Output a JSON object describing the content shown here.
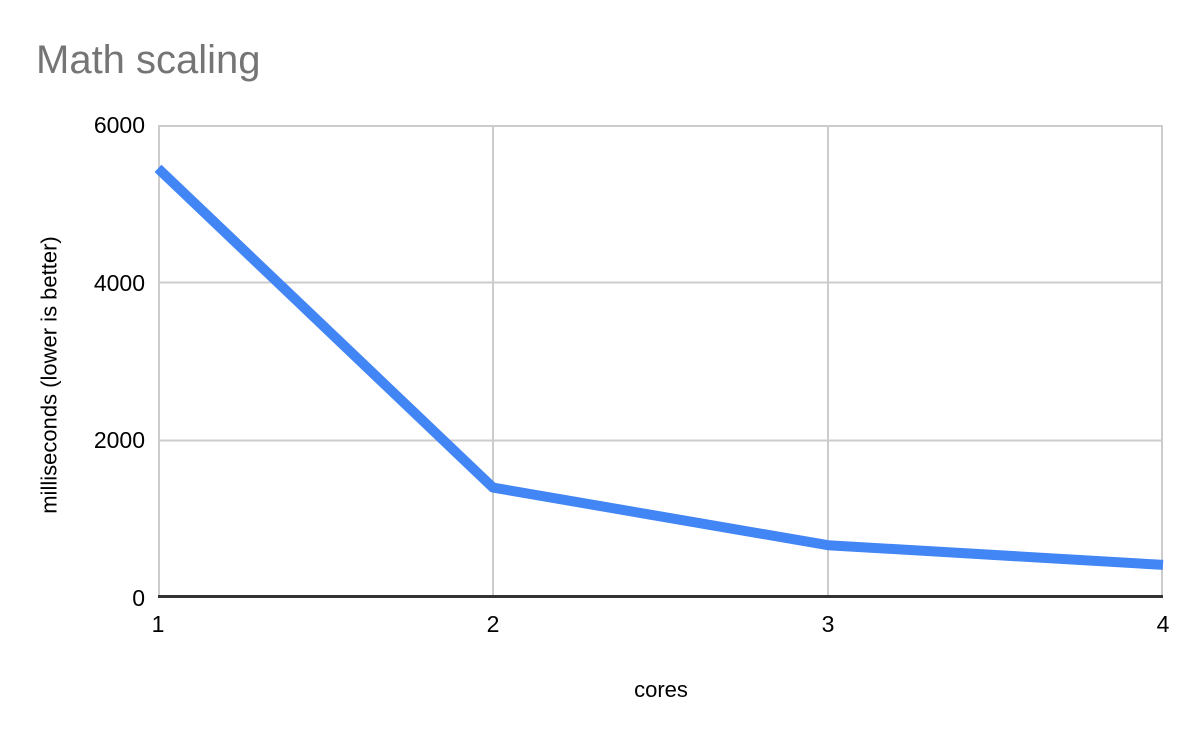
{
  "chart_title": "Math scaling",
  "colors": {
    "series_line": "#4285f4",
    "title_text": "#757575",
    "tick_text": "#000000",
    "gridline": "#cccccc",
    "axis_baseline": "#333333",
    "background": "#ffffff"
  },
  "chart_data": {
    "type": "line",
    "title": "Math scaling",
    "xlabel": "cores",
    "ylabel": "milliseconds (lower is better)",
    "x": [
      1,
      2,
      3,
      4
    ],
    "values": [
      5450,
      1400,
      670,
      420
    ],
    "xticks": [
      "1",
      "2",
      "3",
      "4"
    ],
    "yticks": [
      "0",
      "2000",
      "4000",
      "6000"
    ],
    "xlim": [
      1,
      4
    ],
    "ylim": [
      0,
      6000
    ],
    "grid": true,
    "legend": "none",
    "line_color": "#4285f4",
    "line_width": 10
  }
}
